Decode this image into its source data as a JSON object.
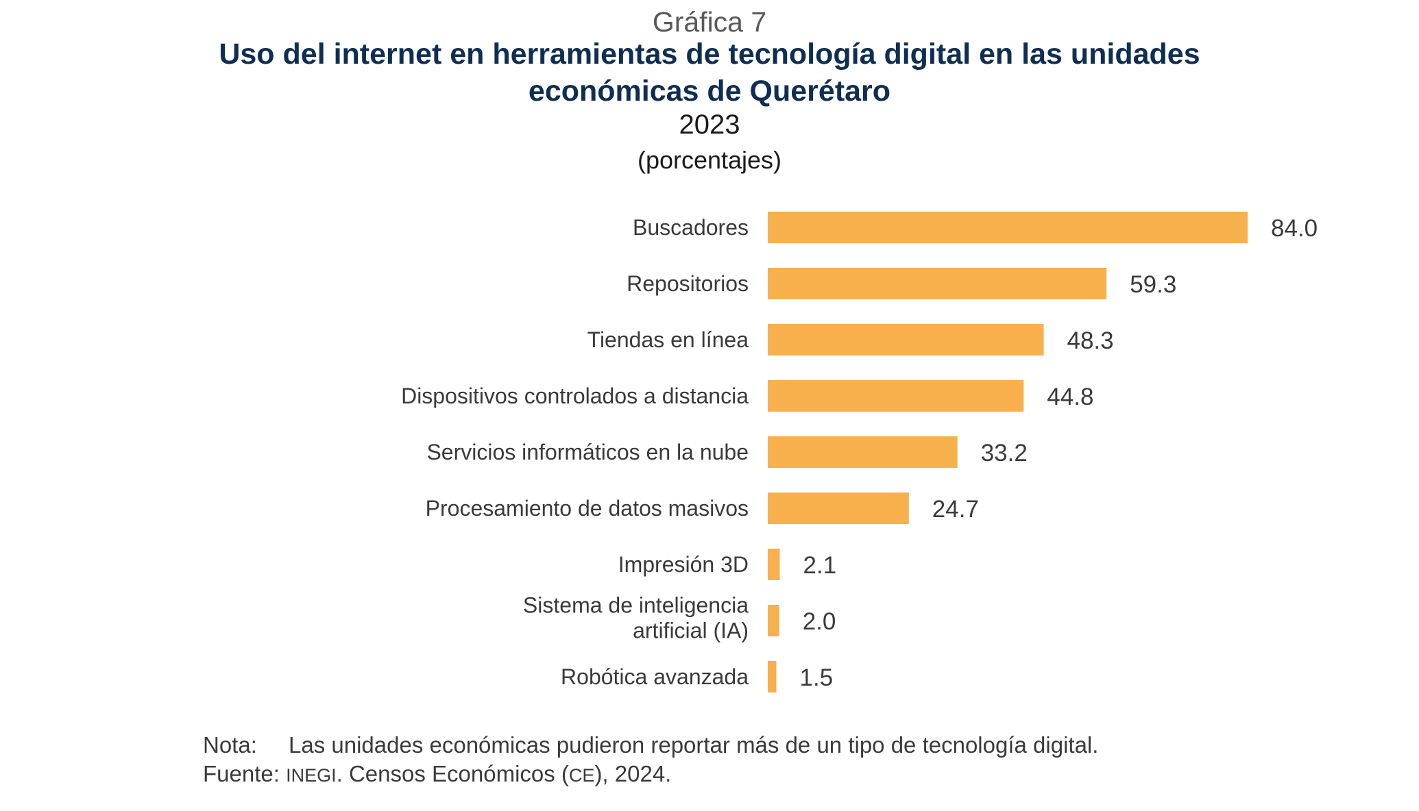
{
  "header": {
    "chart_number": "Gráfica 7",
    "title_line1": "Uso del internet en herramientas de tecnología digital en las unidades",
    "title_line2": "económicas de Querétaro",
    "year": "2023",
    "unit": "(porcentajes)"
  },
  "colors": {
    "bar": "#F7B04C",
    "title": "#0F2E52",
    "label": "#3A3A3A"
  },
  "chart_data": {
    "type": "bar",
    "orientation": "horizontal",
    "title": "Uso del internet en herramientas de tecnología digital en las unidades económicas de Querétaro",
    "subtitle": "2023",
    "unit": "(porcentajes)",
    "categories": [
      [
        "Buscadores"
      ],
      [
        "Repositorios"
      ],
      [
        "Tiendas en línea"
      ],
      [
        "Dispositivos controlados a distancia"
      ],
      [
        "Servicios informáticos en la nube"
      ],
      [
        "Procesamiento de datos masivos"
      ],
      [
        "Impresión 3D"
      ],
      [
        "Sistema de inteligencia",
        "artificial (IA)"
      ],
      [
        "Robótica avanzada"
      ]
    ],
    "values": [
      84.0,
      59.3,
      48.3,
      44.8,
      33.2,
      24.7,
      2.1,
      2.0,
      1.5
    ],
    "value_labels": [
      "84.0",
      "59.3",
      "48.3",
      "44.8",
      "33.2",
      "24.7",
      "2.1",
      "2.0",
      "1.5"
    ],
    "xlim": [
      0,
      84.0
    ],
    "grid": false,
    "legend": "none"
  },
  "footer": {
    "note_label": "Nota:",
    "note_text": "Las unidades económicas pudieron reportar más de un tipo de tecnología digital.",
    "source_label": "Fuente:",
    "source_org": "INEGI",
    "source_mid": ". Censos Económicos (",
    "source_abbr": "CE",
    "source_end": "), 2024."
  }
}
